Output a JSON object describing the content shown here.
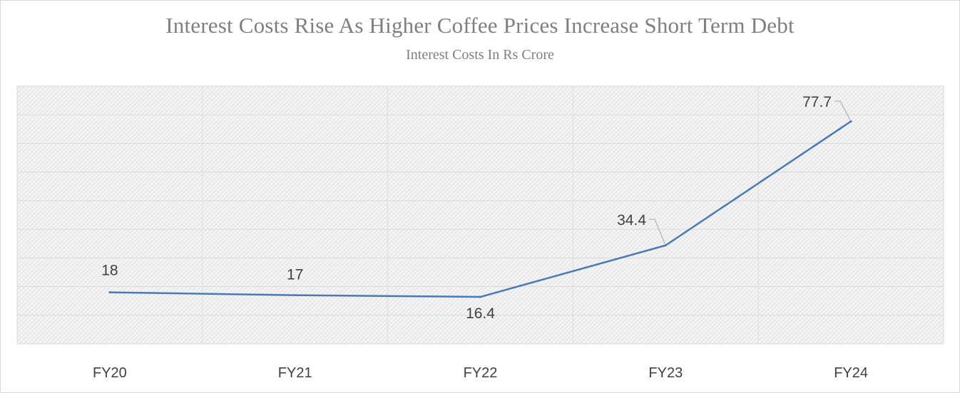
{
  "chart_data": {
    "type": "line",
    "title": "Interest Costs Rise As Higher Coffee Prices Increase Short Term Debt",
    "subtitle": "Interest Costs In Rs Crore",
    "categories": [
      "FY20",
      "FY21",
      "FY22",
      "FY23",
      "FY24"
    ],
    "series": [
      {
        "values": [
          18,
          17,
          16.4,
          34.4,
          77.7
        ],
        "color": "#4a7ab5"
      }
    ],
    "data_labels": [
      "18",
      "17",
      "16.4",
      "34.4",
      "77.7"
    ],
    "ylim": [
      0,
      90
    ],
    "grid": true,
    "legend": "none",
    "plot_fill": "light-gray hatched"
  }
}
